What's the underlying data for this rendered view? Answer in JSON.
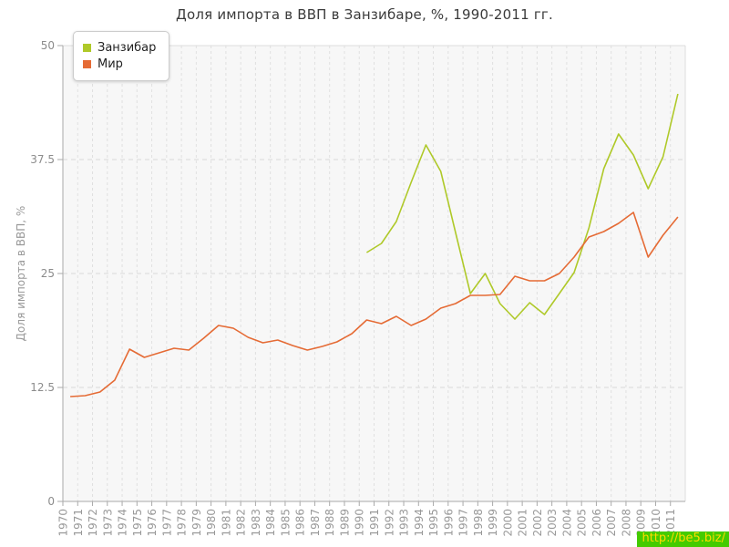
{
  "legend": {
    "items": [
      {
        "label": "Занзибар"
      },
      {
        "label": "Мир"
      }
    ]
  },
  "watermark": {
    "text": "http://be5.biz/",
    "bg_color": "#44cb00",
    "text_color": "#ffdb00"
  },
  "colors": {
    "zanzibar": "#afc929",
    "world": "#e56b35",
    "plot_background": "#f7f7f7",
    "grid": "#e0e0e0",
    "axis": "#aaaaaa",
    "tick_label": "#999999",
    "title_text": "#3a3a3a"
  },
  "chart_data": {
    "type": "line",
    "title": "Доля импорта в ВВП в Занзибаре, %, 1990-2011 гг.",
    "xlabel": "",
    "ylabel": "Доля импорта в ВВП, %",
    "ylim": [
      0,
      50
    ],
    "yticks": [
      0,
      12.5,
      25,
      37.5,
      50
    ],
    "ytick_labels": [
      "0",
      "12.5",
      "25",
      "37.5",
      "50"
    ],
    "grid": true,
    "legend_position": "top-left",
    "x": [
      1970,
      1971,
      1972,
      1973,
      1974,
      1975,
      1976,
      1977,
      1978,
      1979,
      1980,
      1981,
      1982,
      1983,
      1984,
      1985,
      1986,
      1987,
      1988,
      1989,
      1990,
      1991,
      1992,
      1993,
      1994,
      1995,
      1996,
      1997,
      1998,
      1999,
      2000,
      2001,
      2002,
      2003,
      2004,
      2005,
      2006,
      2007,
      2008,
      2009,
      2010,
      2011
    ],
    "series": [
      {
        "name": "Занзибар",
        "color": "#afc929",
        "values": [
          null,
          null,
          null,
          null,
          null,
          null,
          null,
          null,
          null,
          null,
          null,
          null,
          null,
          null,
          null,
          null,
          null,
          null,
          null,
          null,
          27.3,
          28.3,
          30.7,
          35.0,
          39.1,
          36.2,
          29.5,
          22.8,
          25.0,
          21.7,
          20.0,
          21.8,
          20.5,
          22.8,
          25.1,
          30.0,
          36.5,
          40.3,
          38.0,
          34.3,
          37.8,
          44.7
        ]
      },
      {
        "name": "Мир",
        "color": "#e56b35",
        "values": [
          11.5,
          11.6,
          12.0,
          13.3,
          16.7,
          15.8,
          16.3,
          16.8,
          16.6,
          17.9,
          19.3,
          19.0,
          18.0,
          17.4,
          17.7,
          17.1,
          16.6,
          17.0,
          17.5,
          18.4,
          19.9,
          19.5,
          20.3,
          19.3,
          20.0,
          21.2,
          21.7,
          22.6,
          22.6,
          22.7,
          24.7,
          24.2,
          24.2,
          25.0,
          26.8,
          29.0,
          29.6,
          30.5,
          31.7,
          26.8,
          29.2,
          31.2
        ]
      }
    ]
  }
}
